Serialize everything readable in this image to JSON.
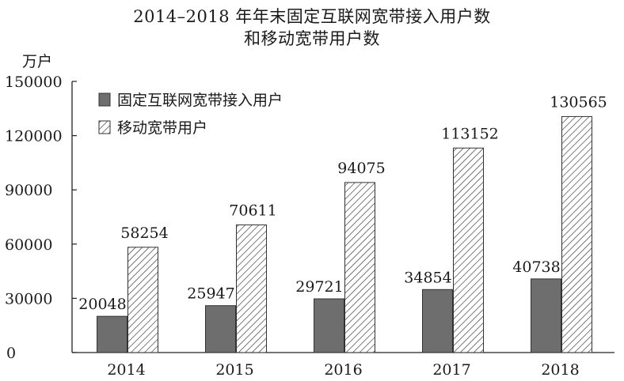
{
  "chart_data": {
    "type": "bar",
    "title": "2014–2018 年年末固定互联网宽带接入用户数",
    "subtitle": "和移动宽带用户数",
    "ylabel": "万户",
    "xlabel": "",
    "ylim": [
      0,
      150000
    ],
    "yticks": [
      "150000",
      "120000",
      "90000",
      "60000",
      "30000",
      "0"
    ],
    "categories": [
      "2014",
      "2015",
      "2016",
      "2017",
      "2018"
    ],
    "series": [
      {
        "name": "固定互联网宽带接入用户",
        "values": [
          20048,
          25947,
          29721,
          34854,
          40738
        ],
        "fill": "solid",
        "color": "#6e6e6e"
      },
      {
        "name": "移动宽带用户",
        "values": [
          58254,
          70611,
          94075,
          113152,
          130565
        ],
        "fill": "diagonal-hatch",
        "color": "#333333"
      }
    ],
    "legend_position": "top-left",
    "grid": false
  }
}
